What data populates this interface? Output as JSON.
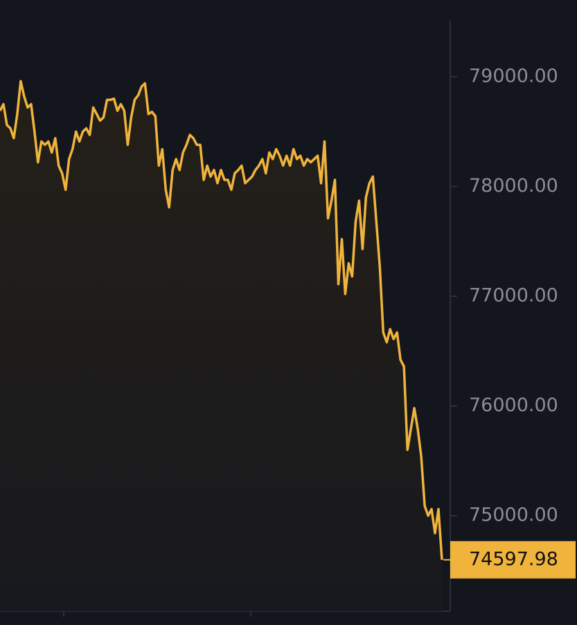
{
  "chart_data": {
    "type": "area",
    "color": "#f0b43c",
    "background": "#14161e",
    "values": [
      78690,
      78750,
      78560,
      78530,
      78440,
      78660,
      78960,
      78820,
      78720,
      78750,
      78500,
      78220,
      78410,
      78380,
      78410,
      78310,
      78440,
      78190,
      78120,
      77970,
      78250,
      78340,
      78500,
      78410,
      78500,
      78530,
      78470,
      78720,
      78660,
      78600,
      78630,
      78790,
      78790,
      78800,
      78690,
      78750,
      78690,
      78380,
      78630,
      78790,
      78830,
      78910,
      78940,
      78660,
      78680,
      78640,
      78190,
      78340,
      77970,
      77810,
      78150,
      78250,
      78150,
      78310,
      78380,
      78470,
      78440,
      78380,
      78380,
      78060,
      78190,
      78090,
      78150,
      78030,
      78150,
      78060,
      78060,
      77970,
      78120,
      78150,
      78190,
      78030,
      78060,
      78090,
      78150,
      78190,
      78250,
      78120,
      78310,
      78250,
      78340,
      78280,
      78190,
      78280,
      78190,
      78340,
      78250,
      78280,
      78190,
      78250,
      78220,
      78250,
      78280,
      78030,
      78410,
      77710,
      77870,
      78060,
      77110,
      77520,
      77020,
      77300,
      77180,
      77680,
      77870,
      77430,
      77900,
      78030,
      78090,
      77680,
      77270,
      76670,
      76580,
      76700,
      76610,
      76670,
      76420,
      76360,
      75600,
      75790,
      75980,
      75790,
      75540,
      75090,
      75000,
      75060,
      74840,
      75060,
      74597.98
    ],
    "ylim": [
      74130,
      79510
    ],
    "yticks": [
      {
        "value": 75000,
        "label": "75000.00"
      },
      {
        "value": 76000,
        "label": "76000.00"
      },
      {
        "value": 77000,
        "label": "77000.00"
      },
      {
        "value": 78000,
        "label": "78000.00"
      },
      {
        "value": 79000,
        "label": "79000.00"
      }
    ],
    "grid": false
  }
}
